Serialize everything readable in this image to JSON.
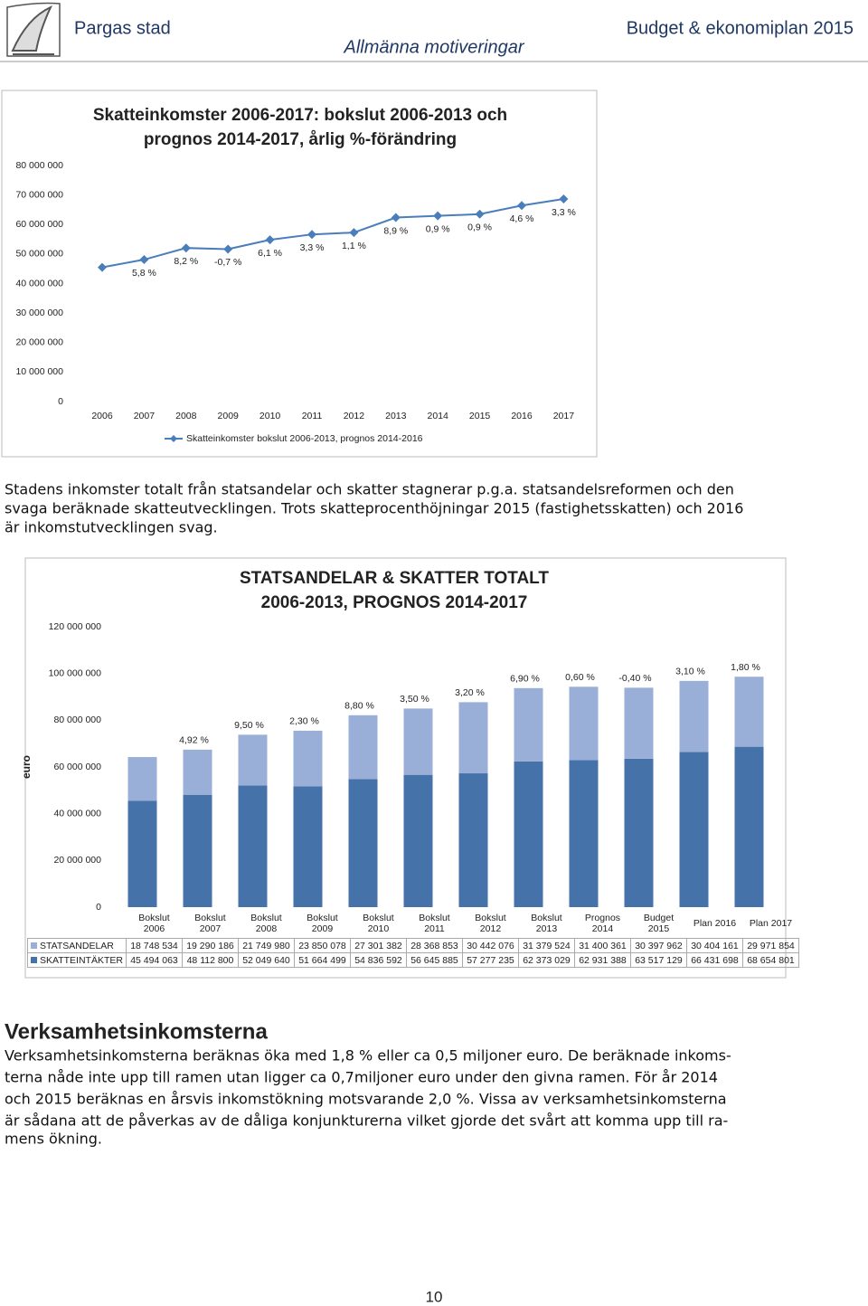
{
  "header": {
    "left": "Pargas stad",
    "right": "Budget & ekonomiplan 2015",
    "subtitle": "Allmänna motiveringar"
  },
  "chart_data": [
    {
      "type": "line",
      "title": [
        "Skatteinkomster 2006-2017: bokslut 2006-2013 och",
        "prognos 2014-2017, årlig %-förändring"
      ],
      "categories": [
        "2006",
        "2007",
        "2008",
        "2009",
        "2010",
        "2011",
        "2012",
        "2013",
        "2014",
        "2015",
        "2016",
        "2017"
      ],
      "series": [
        {
          "name": "Skatteinkomster bokslut 2006-2013, prognos 2014-2016",
          "color": "#4a7ebb",
          "values": [
            45494063,
            48112800,
            52049640,
            51664499,
            54836592,
            56645885,
            57277235,
            62373029,
            62931388,
            63517129,
            66431698,
            68654801
          ],
          "change_labels": [
            null,
            "5,8 %",
            "8,2 %",
            "-0,7 %",
            "6,1 %",
            "3,3 %",
            "1,1 %",
            "8,9 %",
            "0,9 %",
            "0,9 %",
            "4,6 %",
            "3,3 %"
          ]
        }
      ],
      "ylim": [
        0,
        80000000
      ],
      "yticks": [
        0,
        {
          "value": 10000000,
          "label": "10 000 000"
        },
        {
          "value": 20000000,
          "label": "20 000 000"
        },
        {
          "value": 30000000,
          "label": "30 000 000"
        },
        {
          "value": 40000000,
          "label": "40 000 000"
        },
        {
          "value": 50000000,
          "label": "50 000 000"
        },
        {
          "value": 60000000,
          "label": "60 000 000"
        },
        {
          "value": 70000000,
          "label": "70 000 000"
        },
        {
          "value": 80000000,
          "label": "80 000 000"
        }
      ]
    },
    {
      "type": "bar",
      "stacked": true,
      "title": [
        "STATSANDELAR & SKATTER TOTALT",
        "2006-2013, PROGNOS 2014-2017"
      ],
      "y_label": "euro",
      "categories": [
        "Bokslut 2006",
        "Bokslut 2007",
        "Bokslut 2008",
        "Bokslut 2009",
        "Bokslut 2010",
        "Bokslut 2011",
        "Bokslut 2012",
        "Bokslut 2013",
        "Prognos 2014",
        "Budget 2015",
        "Plan 2016",
        "Plan 2017"
      ],
      "series": [
        {
          "name": "STATSANDELAR",
          "color": "#9aafd8",
          "values": [
            18748534,
            19290186,
            21749980,
            23850078,
            27301382,
            28368853,
            30442076,
            31379524,
            31400361,
            30397962,
            30404161,
            29971854
          ],
          "value_labels": [
            "18 748 534",
            "19 290 186",
            "21 749 980",
            "23 850 078",
            "27 301 382",
            "28 368 853",
            "30 442 076",
            "31 379 524",
            "31 400 361",
            "30 397 962",
            "30 404 161",
            "29 971 854"
          ]
        },
        {
          "name": "SKATTEINTÄKTER",
          "color": "#4672aa",
          "values": [
            45494063,
            48112800,
            52049640,
            51664499,
            54836592,
            56645885,
            57277235,
            62373029,
            62931388,
            63517129,
            66431698,
            68654801
          ],
          "value_labels": [
            "45 494 063",
            "48 112 800",
            "52 049 640",
            "51 664 499",
            "54 836 592",
            "56 645 885",
            "57 277 235",
            "62 373 029",
            "62 931 388",
            "63 517 129",
            "66 431 698",
            "68 654 801"
          ]
        }
      ],
      "change_labels": [
        null,
        "4,92 %",
        "9,50 %",
        "2,30 %",
        "8,80 %",
        "3,50 %",
        "3,20 %",
        "6,90 %",
        "0,60 %",
        "-0,40 %",
        "3,10 %",
        "1,80 %"
      ],
      "ylim": [
        0,
        120000000
      ],
      "yticks": [
        0,
        {
          "value": 20000000,
          "label": "20 000 000"
        },
        {
          "value": 40000000,
          "label": "40 000 000"
        },
        {
          "value": 60000000,
          "label": "60 000 000"
        },
        {
          "value": 80000000,
          "label": "80 000 000"
        },
        {
          "value": 100000000,
          "label": "100 000 000"
        },
        {
          "value": 120000000,
          "label": "120 000 000"
        }
      ]
    }
  ],
  "paragraph": [
    "Stadens inkomster totalt från statsandelar och skatter stagnerar p.g.a. statsandelsreformen och den",
    "svaga beräknade skatteutvecklingen. Trots skatteprocenthöjningar 2015 (fastighetsskatten) och 2016",
    "är inkomstutvecklingen svag."
  ],
  "section": {
    "heading": "Verksamhetsinkomsterna",
    "lines": [
      "Verksamhetsinkomsterna beräknas öka med 1,8 % eller ca 0,5 miljoner euro. De beräknade inkoms-",
      "terna nåde inte upp till ramen utan ligger ca 0,7miljoner euro under den givna ramen. För år 2014",
      "och 2015 beräknas en årsvis inkomstökning motsvarande 2,0 %.  Vissa av verksamhetsinkomsterna",
      "är sådana att de påverkas av de dåliga konjunkturerna vilket gjorde det svårt att komma upp till ra-",
      "mens ökning."
    ]
  },
  "page_number": "10"
}
